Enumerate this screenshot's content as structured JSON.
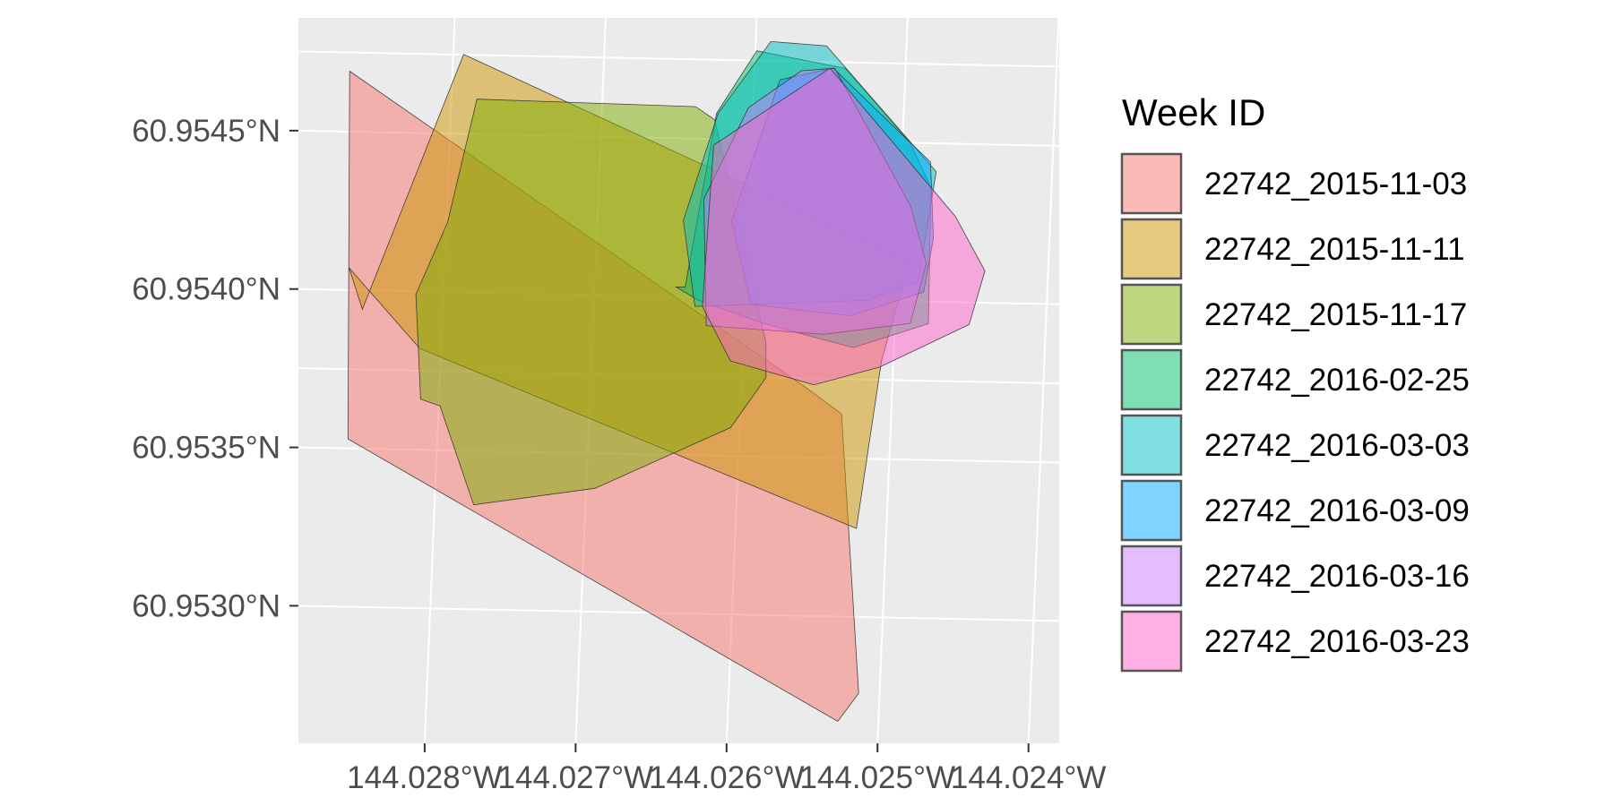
{
  "chart_data": {
    "type": "map",
    "title": "",
    "xlabel": "",
    "ylabel": "",
    "background": "#EBEBEB",
    "grid": true,
    "legend_position": "right",
    "x_ticks": [
      {
        "value": -144.028,
        "label": "144.028°W"
      },
      {
        "value": -144.027,
        "label": "144.027°W"
      },
      {
        "value": -144.026,
        "label": "144.026°W"
      },
      {
        "value": -144.025,
        "label": "144.025°W"
      },
      {
        "value": -144.024,
        "label": "144.024°W"
      }
    ],
    "y_ticks": [
      {
        "value": 60.9545,
        "label": "60.9545°N"
      },
      {
        "value": 60.954,
        "label": "60.9540°N"
      },
      {
        "value": 60.9535,
        "label": "60.9535°N"
      },
      {
        "value": 60.953,
        "label": "60.9530°N"
      }
    ],
    "xlim": [
      -144.02893,
      -144.02389
    ],
    "ylim": [
      60.95259,
      60.95488
    ],
    "legend": {
      "title": "Week ID",
      "entries": [
        {
          "label": "22742_2015-11-03",
          "color": "#F8766D"
        },
        {
          "label": "22742_2015-11-11",
          "color": "#CD9600"
        },
        {
          "label": "22742_2015-11-17",
          "color": "#7CAE00"
        },
        {
          "label": "22742_2016-02-25",
          "color": "#00BE67"
        },
        {
          "label": "22742_2016-03-03",
          "color": "#00BFC4"
        },
        {
          "label": "22742_2016-03-09",
          "color": "#00A9FF"
        },
        {
          "label": "22742_2016-03-16",
          "color": "#C77CFF"
        },
        {
          "label": "22742_2016-03-23",
          "color": "#FF61CC"
        }
      ]
    },
    "series": [
      {
        "name": "22742_2015-11-03",
        "color": "#F8766D",
        "coords": [
          [
            -144.02868,
            60.95469
          ],
          [
            -144.02557,
            60.95372
          ],
          [
            -144.02533,
            60.95364
          ],
          [
            -144.02514,
            60.95276
          ],
          [
            -144.02527,
            60.95267
          ],
          [
            -144.02859,
            60.95353
          ],
          [
            -144.02868,
            60.95469
          ]
        ]
      },
      {
        "name": "22742_2015-11-11",
        "color": "#CD9600",
        "coords": [
          [
            -144.02793,
            60.95475
          ],
          [
            -144.02492,
            60.95413
          ],
          [
            -144.02508,
            60.95381
          ],
          [
            -144.0252,
            60.95328
          ],
          [
            -144.02814,
            60.95382
          ],
          [
            -144.02863,
            60.95407
          ],
          [
            -144.02853,
            60.95394
          ],
          [
            -144.02793,
            60.95475
          ]
        ]
      },
      {
        "name": "22742_2015-11-17",
        "color": "#7CAE00",
        "coords": [
          [
            -144.02783,
            60.95461
          ],
          [
            -144.02638,
            60.9546
          ],
          [
            -144.02625,
            60.95456
          ],
          [
            -144.02585,
            60.95386
          ],
          [
            -144.02584,
            60.95375
          ],
          [
            -144.02606,
            60.95359
          ],
          [
            -144.02694,
            60.95339
          ],
          [
            -144.02774,
            60.95333
          ],
          [
            -144.02799,
            60.95364
          ],
          [
            -144.02812,
            60.95366
          ],
          [
            -144.02818,
            60.95399
          ],
          [
            -144.02799,
            60.95422
          ],
          [
            -144.02783,
            60.95461
          ]
        ]
      },
      {
        "name": "22742_2016-02-25",
        "color": "#00BE67",
        "coords": [
          [
            -144.02624,
            60.95458
          ],
          [
            -144.02599,
            60.95478
          ],
          [
            -144.0254,
            60.95473
          ],
          [
            -144.02495,
            60.9545
          ],
          [
            -144.0248,
            60.95436
          ],
          [
            -144.02478,
            60.95393
          ],
          [
            -144.02527,
            60.95385
          ],
          [
            -144.02587,
            60.95392
          ],
          [
            -144.02631,
            60.95399
          ],
          [
            -144.02646,
            60.95403
          ],
          [
            -144.0264,
            60.95403
          ],
          [
            -144.02624,
            60.95458
          ]
        ]
      },
      {
        "name": "22742_2016-03-03",
        "color": "#00BFC4",
        "coords": [
          [
            -144.02623,
            60.95458
          ],
          [
            -144.0259,
            60.95481
          ],
          [
            -144.02553,
            60.9548
          ],
          [
            -144.02477,
            60.95441
          ],
          [
            -144.02486,
            60.95406
          ],
          [
            -144.02519,
            60.954
          ],
          [
            -144.02633,
            60.95397
          ],
          [
            -144.02643,
            60.95424
          ],
          [
            -144.02623,
            60.95458
          ]
        ]
      },
      {
        "name": "22742_2016-03-09",
        "color": "#00A9FF",
        "coords": [
          [
            -144.02583,
            60.95469
          ],
          [
            -144.02548,
            60.95473
          ],
          [
            -144.02481,
            60.95444
          ],
          [
            -144.02477,
            60.9542
          ],
          [
            -144.02482,
            60.95403
          ],
          [
            -144.0253,
            60.95395
          ],
          [
            -144.02596,
            60.95398
          ],
          [
            -144.02611,
            60.95424
          ],
          [
            -144.02583,
            60.95469
          ]
        ]
      },
      {
        "name": "22742_2016-03-16",
        "color": "#C77CFF",
        "coords": [
          [
            -144.02569,
            60.95472
          ],
          [
            -144.02547,
            60.95473
          ],
          [
            -144.02493,
            60.9543
          ],
          [
            -144.02481,
            60.95412
          ],
          [
            -144.0249,
            60.95393
          ],
          [
            -144.02547,
            60.95389
          ],
          [
            -144.02625,
            60.95391
          ],
          [
            -144.0263,
            60.95431
          ],
          [
            -144.02603,
            60.9546
          ],
          [
            -144.02569,
            60.95472
          ]
        ]
      },
      {
        "name": "22742_2016-03-23",
        "color": "#FF61CC",
        "coords": [
          [
            -144.0255,
            60.95473
          ],
          [
            -144.02463,
            60.95427
          ],
          [
            -144.02442,
            60.9541
          ],
          [
            -144.02451,
            60.95393
          ],
          [
            -144.02509,
            60.95379
          ],
          [
            -144.02552,
            60.95373
          ],
          [
            -144.02608,
            60.9538
          ],
          [
            -144.02628,
            60.95397
          ],
          [
            -144.02625,
            60.95448
          ],
          [
            -144.0255,
            60.95473
          ]
        ]
      }
    ]
  }
}
